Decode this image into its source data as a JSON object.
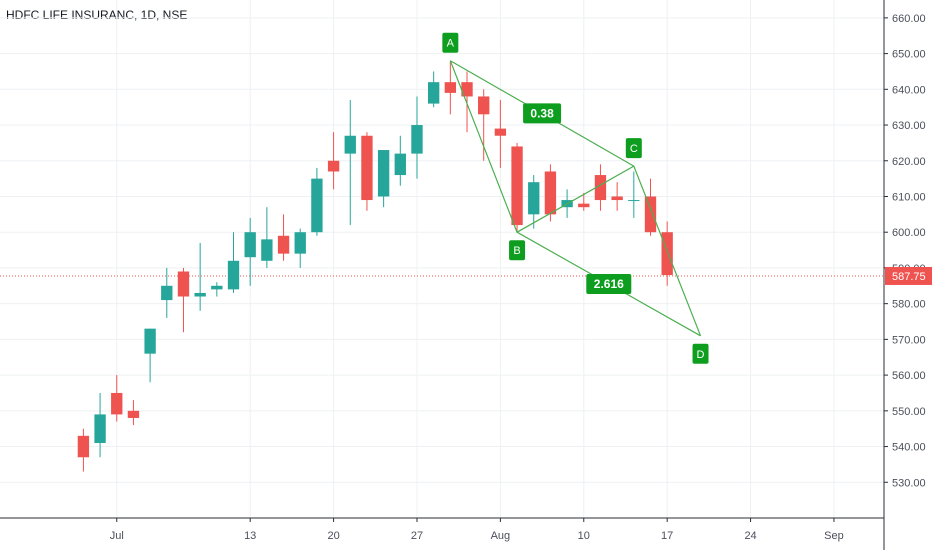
{
  "title": "HDFC LIFE INSURANC, 1D, NSE",
  "colors": {
    "up": "#26a69a",
    "down": "#ef5350",
    "pattern": "#4caf50",
    "label_bg": "#0e9e1f",
    "grid": "#eef0f3",
    "price_line": "#ef5350"
  },
  "chart_data": {
    "type": "candlestick",
    "title": "HDFC LIFE INSURANC, 1D, NSE",
    "ylim": [
      520,
      665
    ],
    "y_ticks": [
      530,
      540,
      550,
      560,
      570,
      580,
      590,
      600,
      610,
      620,
      630,
      640,
      650,
      660
    ],
    "y_tick_labels": [
      "530.00",
      "540.00",
      "550.00",
      "560.00",
      "570.00",
      "580.00",
      "590.00",
      "600.00",
      "610.00",
      "620.00",
      "630.00",
      "640.00",
      "650.00",
      "660.00"
    ],
    "x_range": [
      -7,
      46
    ],
    "x_ticks": [
      {
        "label": "Jul",
        "i": 0
      },
      {
        "label": "13",
        "i": 8
      },
      {
        "label": "20",
        "i": 13
      },
      {
        "label": "27",
        "i": 18
      },
      {
        "label": "Aug",
        "i": 23
      },
      {
        "label": "10",
        "i": 28
      },
      {
        "label": "17",
        "i": 33
      },
      {
        "label": "24",
        "i": 38
      },
      {
        "label": "Sep",
        "i": 43
      }
    ],
    "candles": [
      {
        "i": -2,
        "o": 543,
        "h": 545,
        "l": 533,
        "c": 537
      },
      {
        "i": -1,
        "o": 541,
        "h": 555,
        "l": 537,
        "c": 549
      },
      {
        "i": 0,
        "o": 555,
        "h": 560,
        "l": 547,
        "c": 549
      },
      {
        "i": 1,
        "o": 550,
        "h": 553,
        "l": 546,
        "c": 548
      },
      {
        "i": 2,
        "o": 566,
        "h": 573,
        "l": 558,
        "c": 573
      },
      {
        "i": 3,
        "o": 581,
        "h": 590,
        "l": 576,
        "c": 585
      },
      {
        "i": 4,
        "o": 589,
        "h": 590,
        "l": 572,
        "c": 582
      },
      {
        "i": 5,
        "o": 582,
        "h": 597,
        "l": 578,
        "c": 583
      },
      {
        "i": 6,
        "o": 584,
        "h": 586,
        "l": 582,
        "c": 585
      },
      {
        "i": 7,
        "o": 584,
        "h": 600,
        "l": 583,
        "c": 592
      },
      {
        "i": 8,
        "o": 593,
        "h": 604,
        "l": 585,
        "c": 600
      },
      {
        "i": 9,
        "o": 592,
        "h": 607,
        "l": 590,
        "c": 598
      },
      {
        "i": 10,
        "o": 599,
        "h": 605,
        "l": 592,
        "c": 594
      },
      {
        "i": 11,
        "o": 594,
        "h": 601,
        "l": 590,
        "c": 600
      },
      {
        "i": 12,
        "o": 600,
        "h": 618,
        "l": 599,
        "c": 615
      },
      {
        "i": 13,
        "o": 620,
        "h": 628,
        "l": 612,
        "c": 617
      },
      {
        "i": 14,
        "o": 622,
        "h": 637,
        "l": 602,
        "c": 627
      },
      {
        "i": 15,
        "o": 627,
        "h": 628,
        "l": 606,
        "c": 609
      },
      {
        "i": 16,
        "o": 610,
        "h": 623,
        "l": 607,
        "c": 623
      },
      {
        "i": 17,
        "o": 616,
        "h": 627,
        "l": 613,
        "c": 622
      },
      {
        "i": 18,
        "o": 622,
        "h": 638,
        "l": 615,
        "c": 630
      },
      {
        "i": 19,
        "o": 636,
        "h": 645,
        "l": 635,
        "c": 642
      },
      {
        "i": 20,
        "o": 642,
        "h": 648,
        "l": 633,
        "c": 639
      },
      {
        "i": 21,
        "o": 642,
        "h": 645,
        "l": 628,
        "c": 638
      },
      {
        "i": 22,
        "o": 638,
        "h": 640,
        "l": 620,
        "c": 633
      },
      {
        "i": 23,
        "o": 629,
        "h": 637,
        "l": 618,
        "c": 627
      },
      {
        "i": 24,
        "o": 624,
        "h": 625,
        "l": 600,
        "c": 602
      },
      {
        "i": 25,
        "o": 605,
        "h": 616,
        "l": 601,
        "c": 614
      },
      {
        "i": 26,
        "o": 617,
        "h": 619,
        "l": 603,
        "c": 605
      },
      {
        "i": 27,
        "o": 607,
        "h": 612,
        "l": 604,
        "c": 609
      },
      {
        "i": 28,
        "o": 608,
        "h": 611,
        "l": 606,
        "c": 607
      },
      {
        "i": 29,
        "o": 616,
        "h": 619,
        "l": 606,
        "c": 609
      },
      {
        "i": 30,
        "o": 610,
        "h": 614,
        "l": 606,
        "c": 609
      },
      {
        "i": 31,
        "o": 609,
        "h": 617,
        "l": 604,
        "c": 609
      },
      {
        "i": 32,
        "o": 610,
        "h": 615,
        "l": 599,
        "c": 600
      },
      {
        "i": 33,
        "o": 600,
        "h": 603,
        "l": 585,
        "c": 588
      }
    ],
    "pattern": {
      "points": [
        {
          "label": "A",
          "i": 20,
          "price": 648
        },
        {
          "label": "B",
          "i": 24,
          "price": 600
        },
        {
          "label": "C",
          "i": 31,
          "price": 618.5
        },
        {
          "label": "D",
          "i": 35,
          "price": 571
        }
      ],
      "ratios": [
        {
          "label": "0.38",
          "between": [
            "A",
            "C"
          ]
        },
        {
          "label": "2.616",
          "between": [
            "B",
            "D"
          ]
        }
      ]
    },
    "last_price": 587.75,
    "last_price_label": "587.75"
  }
}
